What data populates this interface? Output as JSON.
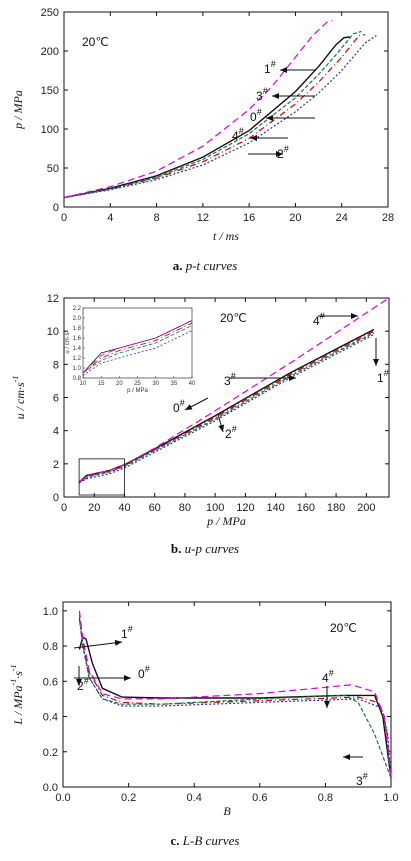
{
  "chart_data": [
    {
      "id": "a",
      "type": "line",
      "caption": {
        "letter": "a.",
        "text": "p-t curves"
      },
      "xlabel": "t / ms",
      "ylabel": "p / MPa",
      "xlim": [
        0,
        28
      ],
      "ylim": [
        0,
        250
      ],
      "xticks": [
        0,
        4,
        8,
        12,
        16,
        20,
        24,
        28
      ],
      "yticks": [
        0,
        50,
        100,
        150,
        200,
        250
      ],
      "condition": "20℃",
      "series": [
        {
          "name": "0#",
          "color": "#111111",
          "dash": "",
          "x": [
            0,
            4,
            8,
            12,
            16,
            20,
            22,
            23.5,
            24.2,
            24.7
          ],
          "y": [
            12,
            24,
            40,
            64,
            98,
            148,
            180,
            208,
            217,
            218
          ]
        },
        {
          "name": "1#",
          "color": "#cc0000",
          "dash": "6,3,1,3",
          "x": [
            0,
            4,
            8,
            12,
            16,
            20,
            22,
            24,
            25.5,
            26
          ],
          "y": [
            12,
            23,
            37,
            58,
            88,
            132,
            160,
            192,
            220,
            221
          ]
        },
        {
          "name": "2#",
          "color": "#2233bb",
          "dash": "2,2",
          "x": [
            0,
            4,
            8,
            12,
            16,
            20,
            22,
            24,
            26,
            27
          ],
          "y": [
            12,
            22,
            35,
            54,
            82,
            122,
            146,
            175,
            210,
            220
          ]
        },
        {
          "name": "3#",
          "color": "#117744",
          "dash": "4,2",
          "x": [
            0,
            4,
            8,
            12,
            16,
            20,
            22,
            23.5,
            25,
            25.7
          ],
          "y": [
            12,
            23,
            38,
            61,
            94,
            140,
            170,
            195,
            222,
            225
          ]
        },
        {
          "name": "4#",
          "color": "#dd00dd",
          "dash": "7,4",
          "x": [
            0,
            4,
            8,
            12,
            16,
            18,
            20,
            21.5,
            22.8,
            23.2
          ],
          "y": [
            12,
            26,
            46,
            78,
            125,
            155,
            192,
            220,
            238,
            239
          ]
        }
      ],
      "labels": [
        {
          "text": "1",
          "sup": "#"
        },
        {
          "text": "3",
          "sup": "#"
        },
        {
          "text": "0",
          "sup": "#"
        },
        {
          "text": "4",
          "sup": "#"
        },
        {
          "text": "2",
          "sup": "#"
        }
      ]
    },
    {
      "id": "b",
      "type": "line",
      "caption": {
        "letter": "b.",
        "text": "u-p curves"
      },
      "xlabel": "p / MPa",
      "ylabel": "u / cm·s",
      "ylabel_sup": "-1",
      "xlim": [
        0,
        215
      ],
      "ylim": [
        0,
        12
      ],
      "xticks": [
        0,
        20,
        40,
        60,
        80,
        100,
        120,
        140,
        160,
        180,
        200
      ],
      "yticks": [
        0,
        2,
        4,
        6,
        8,
        10,
        12
      ],
      "condition": "20℃",
      "series": [
        {
          "name": "0#",
          "color": "#111111",
          "dash": "",
          "x": [
            10,
            15,
            20,
            30,
            40,
            60,
            100,
            150,
            205
          ],
          "y": [
            0.9,
            1.3,
            1.4,
            1.6,
            1.95,
            2.9,
            4.9,
            7.5,
            10.1
          ]
        },
        {
          "name": "1#",
          "color": "#cc0000",
          "dash": "6,3,1,3",
          "x": [
            10,
            15,
            20,
            30,
            40,
            60,
            100,
            150,
            205
          ],
          "y": [
            0.9,
            1.2,
            1.35,
            1.55,
            1.9,
            2.85,
            4.8,
            7.4,
            10.0
          ]
        },
        {
          "name": "2#",
          "color": "#2233bb",
          "dash": "2,2",
          "x": [
            10,
            15,
            20,
            30,
            40,
            60,
            100,
            150,
            205
          ],
          "y": [
            0.85,
            1.1,
            1.2,
            1.4,
            1.75,
            2.7,
            4.6,
            7.2,
            9.8
          ]
        },
        {
          "name": "3#",
          "color": "#117744",
          "dash": "4,2",
          "x": [
            10,
            15,
            20,
            30,
            40,
            60,
            100,
            150,
            205
          ],
          "y": [
            0.9,
            1.15,
            1.3,
            1.5,
            1.85,
            2.8,
            4.7,
            7.3,
            9.9
          ]
        },
        {
          "name": "4#",
          "color": "#dd00dd",
          "dash": "7,4",
          "x": [
            10,
            15,
            20,
            30,
            40,
            60,
            100,
            150,
            215
          ],
          "y": [
            0.9,
            1.25,
            1.4,
            1.6,
            1.95,
            2.95,
            5.2,
            8.1,
            12.0
          ]
        }
      ],
      "inset": {
        "xlabel": "p / MPa",
        "ylabel": "u / cm·s",
        "xlim": [
          10,
          40
        ],
        "ylim": [
          0.8,
          2.2
        ],
        "xticks": [
          10,
          15,
          20,
          25,
          30,
          35,
          40
        ],
        "yticks": [
          "0.8",
          "1.0",
          "1.2",
          "1.4",
          "1.6",
          "1.8",
          "2.0",
          "2.2"
        ]
      },
      "labels": [
        {
          "text": "4",
          "sup": "#"
        },
        {
          "text": "1",
          "sup": "#"
        },
        {
          "text": "3",
          "sup": "#"
        },
        {
          "text": "0",
          "sup": "#"
        },
        {
          "text": "2",
          "sup": "#"
        }
      ]
    },
    {
      "id": "c",
      "type": "line",
      "caption": {
        "letter": "c.",
        "text": "L-B curves"
      },
      "xlabel": "B",
      "ylabel": "L / MPa",
      "ylabel_sup": "-1",
      "ylabel_tail": "·s",
      "ylabel_tail_sup": "-1",
      "xlim": [
        0,
        1
      ],
      "ylim": [
        0,
        1.05
      ],
      "xticks": [
        "0.0",
        "0.2",
        "0.4",
        "0.6",
        "0.8",
        "1.0"
      ],
      "yticks": [
        "0.0",
        "0.2",
        "0.4",
        "0.6",
        "0.8",
        "1.0"
      ],
      "condition": "20℃",
      "series": [
        {
          "name": "0#",
          "color": "#111111",
          "dash": "",
          "x": [
            0.05,
            0.06,
            0.07,
            0.09,
            0.12,
            0.18,
            0.3,
            0.6,
            0.85,
            0.95,
            0.975,
            1.0
          ],
          "y": [
            0.78,
            0.85,
            0.84,
            0.7,
            0.56,
            0.51,
            0.505,
            0.505,
            0.52,
            0.52,
            0.4,
            0.05
          ]
        },
        {
          "name": "1#",
          "color": "#cc0000",
          "dash": "6,3,1,3",
          "x": [
            0.05,
            0.06,
            0.08,
            0.12,
            0.18,
            0.3,
            0.6,
            0.9,
            0.96,
            0.985,
            1.0
          ],
          "y": [
            0.96,
            0.8,
            0.65,
            0.52,
            0.48,
            0.47,
            0.49,
            0.51,
            0.48,
            0.35,
            0.05
          ]
        },
        {
          "name": "2#",
          "color": "#2233bb",
          "dash": "2,2",
          "x": [
            0.05,
            0.06,
            0.08,
            0.12,
            0.18,
            0.3,
            0.6,
            0.9,
            0.97,
            0.99,
            1.0
          ],
          "y": [
            0.95,
            0.82,
            0.62,
            0.5,
            0.46,
            0.46,
            0.48,
            0.5,
            0.45,
            0.3,
            0.05
          ]
        },
        {
          "name": "3#",
          "color": "#117744",
          "dash": "4,2",
          "x": [
            0.05,
            0.06,
            0.08,
            0.12,
            0.18,
            0.3,
            0.6,
            0.86,
            0.9,
            0.95,
            1.0
          ],
          "y": [
            0.98,
            0.8,
            0.62,
            0.5,
            0.47,
            0.47,
            0.5,
            0.52,
            0.48,
            0.3,
            0.05
          ]
        },
        {
          "name": "4#",
          "color": "#dd00dd",
          "dash": "7,4",
          "x": [
            0.05,
            0.06,
            0.08,
            0.12,
            0.18,
            0.3,
            0.6,
            0.88,
            0.95,
            0.98,
            1.0
          ],
          "y": [
            1.0,
            0.85,
            0.66,
            0.53,
            0.5,
            0.5,
            0.53,
            0.58,
            0.54,
            0.4,
            0.05
          ]
        }
      ],
      "labels": [
        {
          "text": "1",
          "sup": "#"
        },
        {
          "text": "0",
          "sup": "#"
        },
        {
          "text": "2",
          "sup": "#"
        },
        {
          "text": "4",
          "sup": "#"
        },
        {
          "text": "3",
          "sup": "#"
        }
      ]
    }
  ]
}
